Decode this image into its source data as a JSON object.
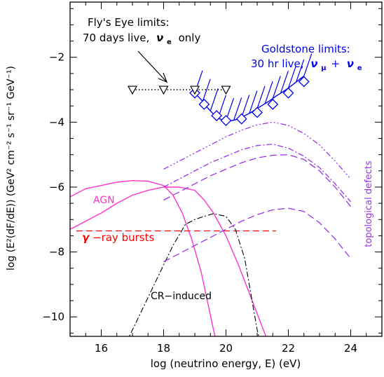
{
  "chart_data": {
    "type": "line",
    "xlabel": "log (neutrino energy, E) (eV)",
    "ylabel": "log (E²(dF/dE)) (GeV² cm⁻² s⁻¹ sr⁻¹ GeV⁻¹)",
    "xlim": [
      15,
      25
    ],
    "ylim": [
      -10.6,
      -0.3
    ],
    "x_ticks": [
      16,
      18,
      20,
      22,
      24
    ],
    "y_ticks": [
      -2,
      -4,
      -6,
      -8,
      -10
    ],
    "grid": false,
    "legend": "none",
    "annotations": {
      "flys_eye_line1": "Fly's Eye limits:",
      "flys_eye_line2_prefix": "70 days live,",
      "flys_eye_nu": "ν",
      "flys_eye_nu_sub": "e",
      "flys_eye_suffix": "only",
      "goldstone_line1": "Goldstone limits:",
      "goldstone_line2_prefix": "30 hr live,",
      "goldstone_nu1": "ν",
      "goldstone_nu1_sub": "μ",
      "goldstone_plus": "+",
      "goldstone_nu2": "ν",
      "goldstone_nu2_sub": "e",
      "agn": "AGN",
      "grb_gamma": "γ",
      "grb_rest": "−ray bursts",
      "cr": "CR−induced",
      "topo": "topological defects"
    },
    "colors": {
      "agn": "#ff33cc",
      "grb": "#ff0000",
      "goldstone": "#0000ee",
      "topo": "#9933ee",
      "cr": "#000000",
      "flys_eye": "#000000"
    },
    "series": [
      {
        "points": [
          [
            19.0,
            -3.1
          ],
          [
            19.2,
            -3.3
          ],
          [
            19.4,
            -3.55
          ],
          [
            19.6,
            -3.75
          ],
          [
            19.8,
            -3.9
          ],
          [
            20.0,
            -3.95
          ],
          [
            20.2,
            -3.95
          ],
          [
            20.4,
            -3.9
          ],
          [
            20.6,
            -3.8
          ],
          [
            20.8,
            -3.7
          ],
          [
            21.0,
            -3.58
          ],
          [
            21.2,
            -3.46
          ],
          [
            21.4,
            -3.34
          ],
          [
            21.6,
            -3.2
          ],
          [
            21.8,
            -3.08
          ],
          [
            22.0,
            -2.95
          ],
          [
            22.2,
            -2.8
          ],
          [
            22.4,
            -2.65
          ],
          [
            22.5,
            -2.58
          ]
        ],
        "markers": [
          [
            19.0,
            -3.1
          ],
          [
            19.3,
            -3.45
          ],
          [
            19.7,
            -3.8
          ],
          [
            20.0,
            -3.95
          ],
          [
            20.5,
            -3.9
          ],
          [
            21.0,
            -3.7
          ],
          [
            21.5,
            -3.45
          ],
          [
            22.0,
            -3.1
          ],
          [
            22.5,
            -2.75
          ]
        ]
      },
      {
        "points": [
          [
            17.0,
            -3.0
          ],
          [
            18.0,
            -3.0
          ],
          [
            19.0,
            -3.0
          ],
          [
            20.0,
            -3.0
          ]
        ],
        "markers": [
          [
            17.0,
            -3.0
          ],
          [
            18.0,
            -3.0
          ],
          [
            19.0,
            -3.0
          ],
          [
            20.0,
            -3.0
          ]
        ]
      },
      {
        "points": [
          [
            15.0,
            -6.3
          ],
          [
            15.5,
            -6.05
          ],
          [
            16.0,
            -5.95
          ],
          [
            16.5,
            -5.85
          ],
          [
            17.0,
            -5.8
          ],
          [
            17.5,
            -5.82
          ],
          [
            18.0,
            -5.95
          ],
          [
            18.3,
            -6.25
          ],
          [
            18.6,
            -6.8
          ],
          [
            18.9,
            -7.6
          ],
          [
            19.2,
            -8.6
          ],
          [
            19.4,
            -9.5
          ],
          [
            19.6,
            -10.4
          ],
          [
            19.7,
            -10.8
          ]
        ]
      },
      {
        "points": [
          [
            15.0,
            -7.3
          ],
          [
            15.5,
            -7.05
          ],
          [
            16.0,
            -6.8
          ],
          [
            16.5,
            -6.5
          ],
          [
            17.0,
            -6.25
          ],
          [
            17.5,
            -6.1
          ],
          [
            18.0,
            -6.0
          ],
          [
            18.5,
            -6.0
          ],
          [
            19.0,
            -6.1
          ],
          [
            19.3,
            -6.4
          ],
          [
            19.6,
            -6.8
          ],
          [
            20.0,
            -7.5
          ],
          [
            20.4,
            -8.4
          ],
          [
            20.8,
            -9.4
          ],
          [
            21.2,
            -10.4
          ],
          [
            21.4,
            -10.9
          ]
        ]
      },
      {
        "points": [
          [
            15.2,
            -7.35
          ],
          [
            21.6,
            -7.35
          ]
        ]
      },
      {
        "points": [
          [
            16.8,
            -10.8
          ],
          [
            17.3,
            -9.8
          ],
          [
            17.8,
            -8.8
          ],
          [
            18.3,
            -7.8
          ],
          [
            18.7,
            -7.15
          ],
          [
            19.0,
            -7.0
          ],
          [
            19.3,
            -6.9
          ],
          [
            19.6,
            -6.82
          ],
          [
            20.0,
            -6.9
          ],
          [
            20.3,
            -7.3
          ],
          [
            20.6,
            -8.2
          ],
          [
            20.8,
            -9.3
          ],
          [
            21.0,
            -10.4
          ],
          [
            21.1,
            -10.8
          ]
        ]
      },
      {
        "points": [
          [
            18.0,
            -5.45
          ],
          [
            18.5,
            -5.2
          ],
          [
            19.0,
            -4.95
          ],
          [
            19.5,
            -4.7
          ],
          [
            20.0,
            -4.45
          ],
          [
            20.5,
            -4.25
          ],
          [
            21.0,
            -4.08
          ],
          [
            21.5,
            -4.0
          ],
          [
            22.0,
            -4.1
          ],
          [
            22.5,
            -4.35
          ],
          [
            23.0,
            -4.7
          ],
          [
            23.5,
            -5.2
          ],
          [
            24.0,
            -5.75
          ]
        ]
      },
      {
        "points": [
          [
            18.0,
            -6.0
          ],
          [
            18.5,
            -5.75
          ],
          [
            19.0,
            -5.5
          ],
          [
            19.5,
            -5.25
          ],
          [
            20.0,
            -5.05
          ],
          [
            20.5,
            -4.85
          ],
          [
            21.0,
            -4.72
          ],
          [
            21.5,
            -4.68
          ],
          [
            22.0,
            -4.8
          ],
          [
            22.5,
            -5.05
          ],
          [
            23.0,
            -5.4
          ],
          [
            23.5,
            -5.9
          ],
          [
            24.0,
            -6.45
          ]
        ]
      },
      {
        "points": [
          [
            18.0,
            -6.4
          ],
          [
            18.5,
            -6.15
          ],
          [
            19.0,
            -5.9
          ],
          [
            19.5,
            -5.65
          ],
          [
            20.0,
            -5.45
          ],
          [
            20.5,
            -5.25
          ],
          [
            21.0,
            -5.1
          ],
          [
            21.5,
            -5.02
          ],
          [
            22.0,
            -5.0
          ],
          [
            22.5,
            -5.15
          ],
          [
            23.0,
            -5.5
          ],
          [
            23.5,
            -6.0
          ],
          [
            24.0,
            -6.6
          ]
        ]
      },
      {
        "points": [
          [
            18.0,
            -8.3
          ],
          [
            18.5,
            -8.05
          ],
          [
            19.0,
            -7.8
          ],
          [
            19.5,
            -7.55
          ],
          [
            20.0,
            -7.3
          ],
          [
            20.5,
            -7.05
          ],
          [
            21.0,
            -6.85
          ],
          [
            21.5,
            -6.7
          ],
          [
            22.0,
            -6.65
          ],
          [
            22.5,
            -6.75
          ],
          [
            23.0,
            -7.1
          ],
          [
            23.5,
            -7.6
          ],
          [
            24.0,
            -8.2
          ]
        ]
      }
    ]
  }
}
